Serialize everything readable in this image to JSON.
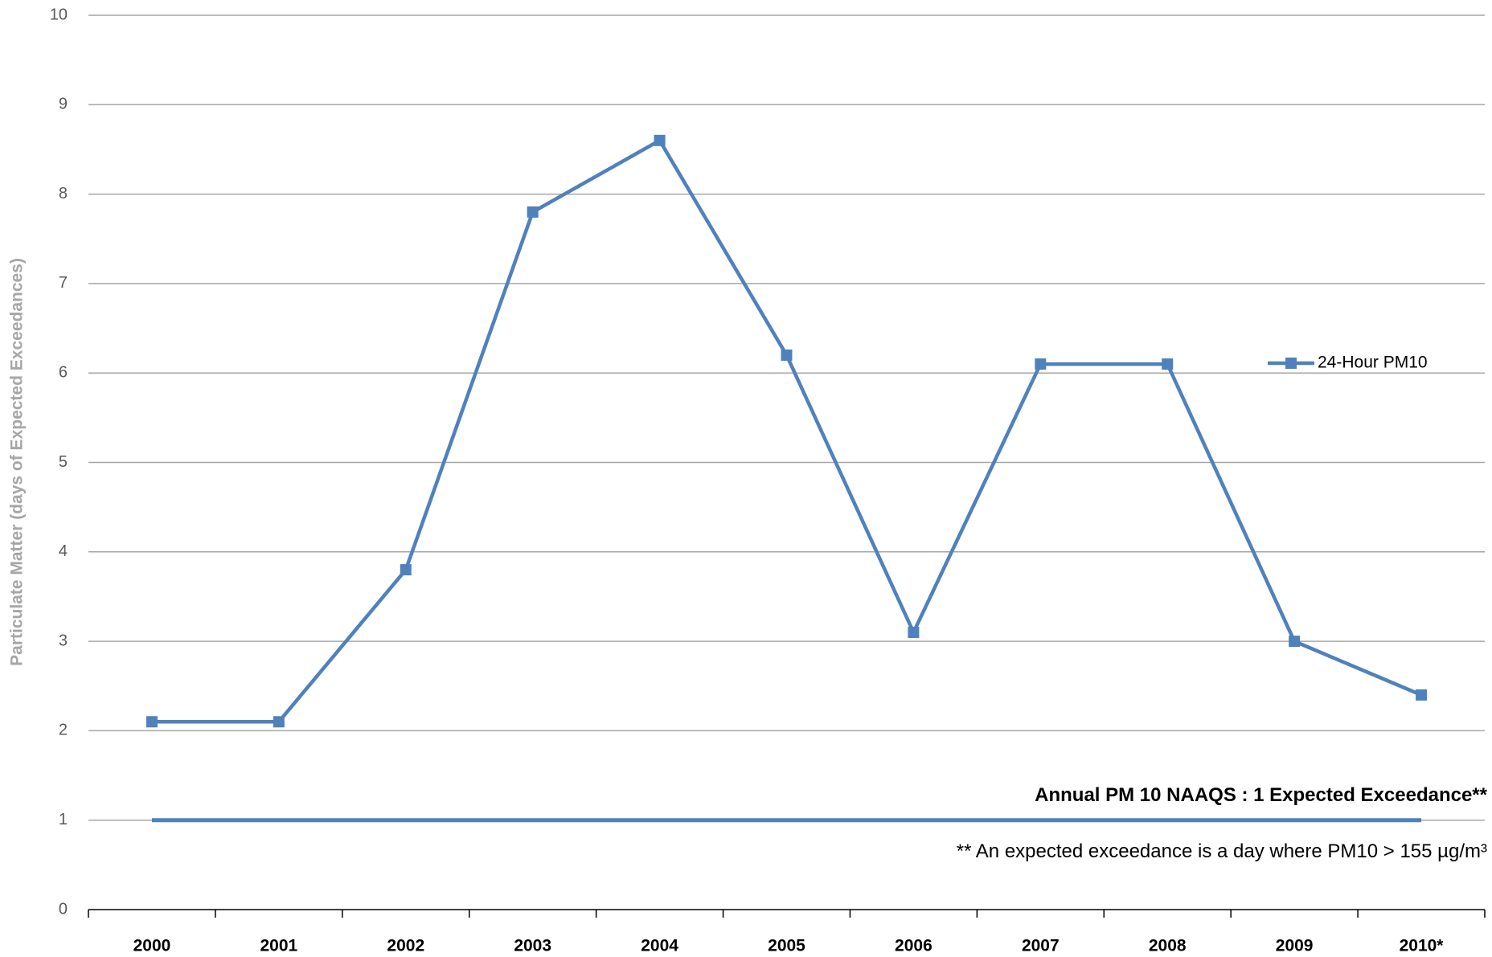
{
  "chart_data": {
    "type": "line",
    "y_label": "Particulate Matter (days of Expected Exceedances)",
    "categories": [
      "2000",
      "2001",
      "2002",
      "2003",
      "2004",
      "2005",
      "2006",
      "2007",
      "2008",
      "2009",
      "2010*"
    ],
    "series": [
      {
        "name": "24-Hour PM10",
        "color": "#4f81bd",
        "values": [
          2.1,
          2.1,
          3.8,
          7.8,
          8.6,
          6.2,
          3.1,
          6.1,
          6.1,
          3.0,
          2.4
        ]
      }
    ],
    "reference_line": {
      "value": 1,
      "label": "Annual PM 10 NAAQS : 1 Expected Exceedance**",
      "color": "#4f81bd"
    },
    "footnote": "** An expected exceedance is a day where PM10 > 155 µg/m³",
    "ylim": [
      0,
      10
    ],
    "yticks": [
      0,
      1,
      2,
      3,
      4,
      5,
      6,
      7,
      8,
      9,
      10
    ],
    "grid": true,
    "legend": "right"
  }
}
